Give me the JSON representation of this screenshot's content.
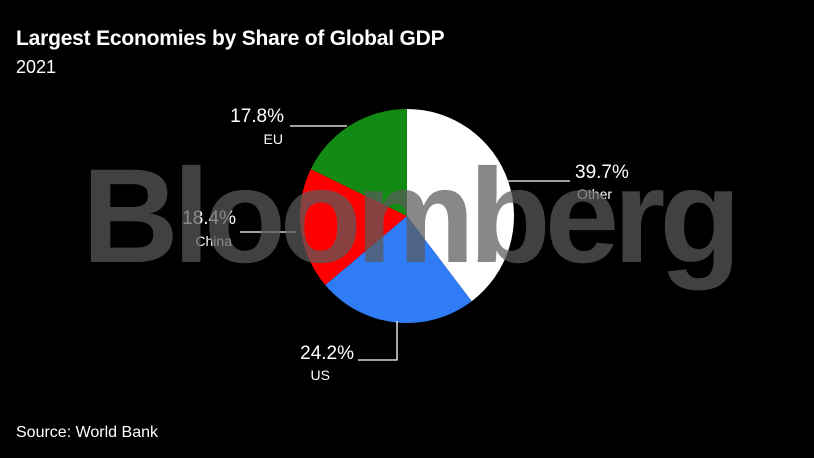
{
  "header": {
    "title": "Largest Economies by Share of Global GDP",
    "subtitle": "2021"
  },
  "footer": {
    "source": "Source: World Bank"
  },
  "watermark": "Bloomberg",
  "chart_data": {
    "type": "pie",
    "title": "Largest Economies by Share of Global GDP",
    "subtitle": "2021",
    "start": "12 o'clock, clockwise",
    "slices": [
      {
        "label": "Other",
        "value": 39.7,
        "value_label": "39.7%",
        "color": "#ffffff"
      },
      {
        "label": "US",
        "value": 24.2,
        "value_label": "24.2%",
        "color": "#2f7cf6"
      },
      {
        "label": "China",
        "value": 18.4,
        "value_label": "18.4%",
        "color": "#ff0000"
      },
      {
        "label": "EU",
        "value": 17.8,
        "value_label": "17.8%",
        "color": "#138a13"
      }
    ]
  }
}
